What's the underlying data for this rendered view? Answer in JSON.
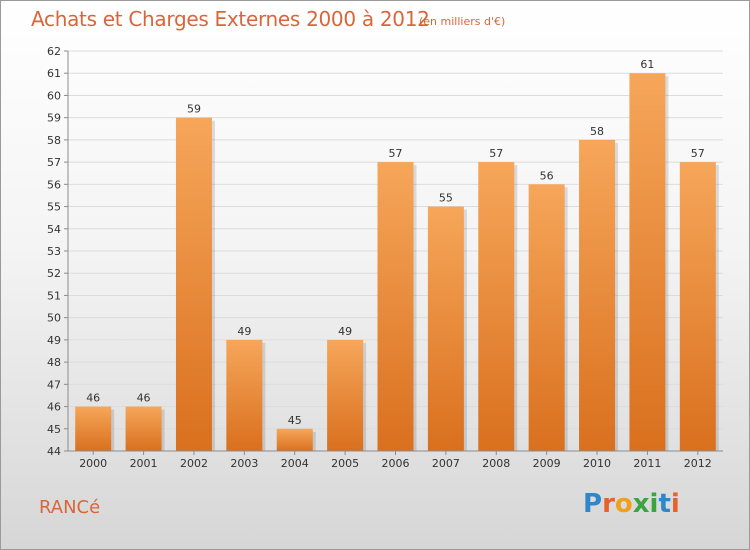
{
  "header": {
    "title": "Achats et Charges Externes 2000 à 2012",
    "subtitle": "(en milliers d'€)"
  },
  "footer": {
    "place": "RANCé",
    "brand": {
      "letters": [
        "P",
        "r",
        "o",
        "x",
        "i",
        "t",
        "i"
      ],
      "colors": [
        "#2f86c8",
        "#e8612c",
        "#f0a01a",
        "#3aa53f",
        "#3aa53f",
        "#2f86c8",
        "#e8612c"
      ]
    }
  },
  "colors": {
    "title": "#d9663a",
    "bar_top": "#f6a65a",
    "bar_bottom": "#d9701e",
    "axis": "#8c8c8c",
    "grid": "#dcdcdc"
  },
  "chart_data": {
    "type": "bar",
    "categories": [
      "2000",
      "2001",
      "2002",
      "2003",
      "2004",
      "2005",
      "2006",
      "2007",
      "2008",
      "2009",
      "2010",
      "2011",
      "2012"
    ],
    "values": [
      46,
      46,
      59,
      49,
      45,
      49,
      57,
      55,
      57,
      56,
      58,
      61,
      57
    ],
    "data_labels": [
      "46",
      "46",
      "59",
      "49",
      "45",
      "49",
      "57",
      "55",
      "57",
      "56",
      "58",
      "61",
      "57"
    ],
    "y_ticks": [
      "44",
      "45",
      "46",
      "47",
      "48",
      "49",
      "50",
      "51",
      "52",
      "53",
      "54",
      "55",
      "56",
      "57",
      "58",
      "59",
      "60",
      "61",
      "62"
    ],
    "ylim": [
      44,
      62
    ],
    "grid": true,
    "xlabel": "",
    "ylabel": ""
  }
}
